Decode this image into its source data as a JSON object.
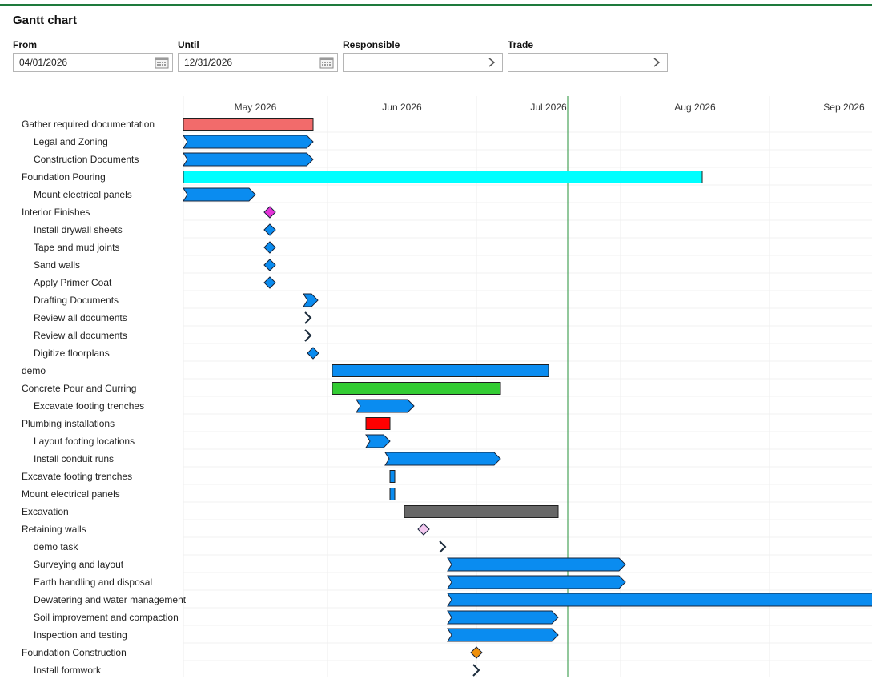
{
  "page": {
    "title": "Gantt chart"
  },
  "filters": {
    "from_label": "From",
    "from_value": "04/01/2026",
    "until_label": "Until",
    "until_value": "12/31/2026",
    "responsible_label": "Responsible",
    "responsible_value": "",
    "trade_label": "Trade",
    "trade_value": ""
  },
  "chart_data": {
    "type": "gantt",
    "months": [
      "May 2026",
      "Jun 2026",
      "Jul 2026",
      "Aug 2026",
      "Sep 2026"
    ],
    "today": "2026-06-20",
    "tasks": [
      {
        "name": "Gather required documentation",
        "level": 0,
        "kind": "bar",
        "start": "2026-04-01",
        "end": "2026-04-28",
        "color": "#f26b6b"
      },
      {
        "name": "Legal and Zoning",
        "level": 1,
        "kind": "task",
        "start": "2026-04-01",
        "end": "2026-04-28",
        "color": "#0a8cf0"
      },
      {
        "name": "Construction Documents",
        "level": 1,
        "kind": "task",
        "start": "2026-04-01",
        "end": "2026-04-28",
        "color": "#0a8cf0"
      },
      {
        "name": "Foundation Pouring",
        "level": 0,
        "kind": "bar",
        "start": "2026-04-01",
        "end": "2026-07-18",
        "color": "#00ffff"
      },
      {
        "name": "Mount electrical panels",
        "level": 1,
        "kind": "task",
        "start": "2026-04-01",
        "end": "2026-04-16",
        "color": "#0a8cf0"
      },
      {
        "name": "Interior Finishes",
        "level": 0,
        "kind": "milestone",
        "start": "2026-04-19",
        "color": "#e433d8"
      },
      {
        "name": "Install drywall sheets",
        "level": 1,
        "kind": "milestone",
        "start": "2026-04-19",
        "color": "#0a8cf0"
      },
      {
        "name": "Tape and mud joints",
        "level": 1,
        "kind": "milestone",
        "start": "2026-04-19",
        "color": "#0a8cf0"
      },
      {
        "name": "Sand walls",
        "level": 1,
        "kind": "milestone",
        "start": "2026-04-19",
        "color": "#0a8cf0"
      },
      {
        "name": "Apply Primer Coat",
        "level": 1,
        "kind": "milestone",
        "start": "2026-04-19",
        "color": "#0a8cf0"
      },
      {
        "name": "Drafting Documents",
        "level": 1,
        "kind": "task",
        "start": "2026-04-26",
        "end": "2026-04-29",
        "color": "#0a8cf0"
      },
      {
        "name": "Review all documents",
        "level": 1,
        "kind": "zero",
        "start": "2026-04-27",
        "color": "#1a2a3a"
      },
      {
        "name": "Review all documents",
        "level": 1,
        "kind": "zero",
        "start": "2026-04-27",
        "color": "#1a2a3a"
      },
      {
        "name": "Digitize floorplans",
        "level": 1,
        "kind": "milestone",
        "start": "2026-04-28",
        "color": "#0a8cf0"
      },
      {
        "name": "demo",
        "level": 0,
        "kind": "bar",
        "start": "2026-05-02",
        "end": "2026-06-16",
        "color": "#0a8cf0"
      },
      {
        "name": "Concrete Pour and Curring",
        "level": 0,
        "kind": "bar",
        "start": "2026-05-02",
        "end": "2026-06-06",
        "color": "#33cc33"
      },
      {
        "name": "Excavate footing trenches",
        "level": 1,
        "kind": "task",
        "start": "2026-05-07",
        "end": "2026-05-19",
        "color": "#0a8cf0"
      },
      {
        "name": "Plumbing installations",
        "level": 0,
        "kind": "bar",
        "start": "2026-05-09",
        "end": "2026-05-14",
        "color": "#ff0000"
      },
      {
        "name": "Layout footing locations",
        "level": 1,
        "kind": "task",
        "start": "2026-05-09",
        "end": "2026-05-14",
        "color": "#0a8cf0"
      },
      {
        "name": "Install conduit runs",
        "level": 1,
        "kind": "task",
        "start": "2026-05-13",
        "end": "2026-06-06",
        "color": "#0a8cf0"
      },
      {
        "name": "Excavate footing trenches",
        "level": 0,
        "kind": "bar",
        "start": "2026-05-14",
        "end": "2026-05-15",
        "color": "#0a8cf0"
      },
      {
        "name": "Mount electrical panels",
        "level": 0,
        "kind": "bar",
        "start": "2026-05-14",
        "end": "2026-05-15",
        "color": "#0a8cf0"
      },
      {
        "name": "Excavation",
        "level": 0,
        "kind": "bar",
        "start": "2026-05-17",
        "end": "2026-06-18",
        "color": "#666666"
      },
      {
        "name": "Retaining walls",
        "level": 0,
        "kind": "milestone",
        "start": "2026-05-21",
        "color": "#f4c8f0"
      },
      {
        "name": "demo task",
        "level": 1,
        "kind": "zero",
        "start": "2026-05-25",
        "color": "#1a2a3a"
      },
      {
        "name": "Surveying and layout",
        "level": 1,
        "kind": "task",
        "start": "2026-05-26",
        "end": "2026-07-02",
        "color": "#0a8cf0"
      },
      {
        "name": "Earth handling and disposal",
        "level": 1,
        "kind": "task",
        "start": "2026-05-26",
        "end": "2026-07-02",
        "color": "#0a8cf0"
      },
      {
        "name": "Dewatering and water management",
        "level": 1,
        "kind": "task",
        "start": "2026-05-26",
        "end": "2026-09-12",
        "color": "#0a8cf0"
      },
      {
        "name": "Soil improvement and compaction",
        "level": 1,
        "kind": "task",
        "start": "2026-05-26",
        "end": "2026-06-18",
        "color": "#0a8cf0"
      },
      {
        "name": "Inspection and testing",
        "level": 1,
        "kind": "task",
        "start": "2026-05-26",
        "end": "2026-06-18",
        "color": "#0a8cf0"
      },
      {
        "name": "Foundation Construction",
        "level": 0,
        "kind": "milestone",
        "start": "2026-06-01",
        "color": "#f0900a"
      },
      {
        "name": "Install formwork",
        "level": 1,
        "kind": "zero",
        "start": "2026-06-01",
        "color": "#1a2a3a"
      }
    ]
  }
}
